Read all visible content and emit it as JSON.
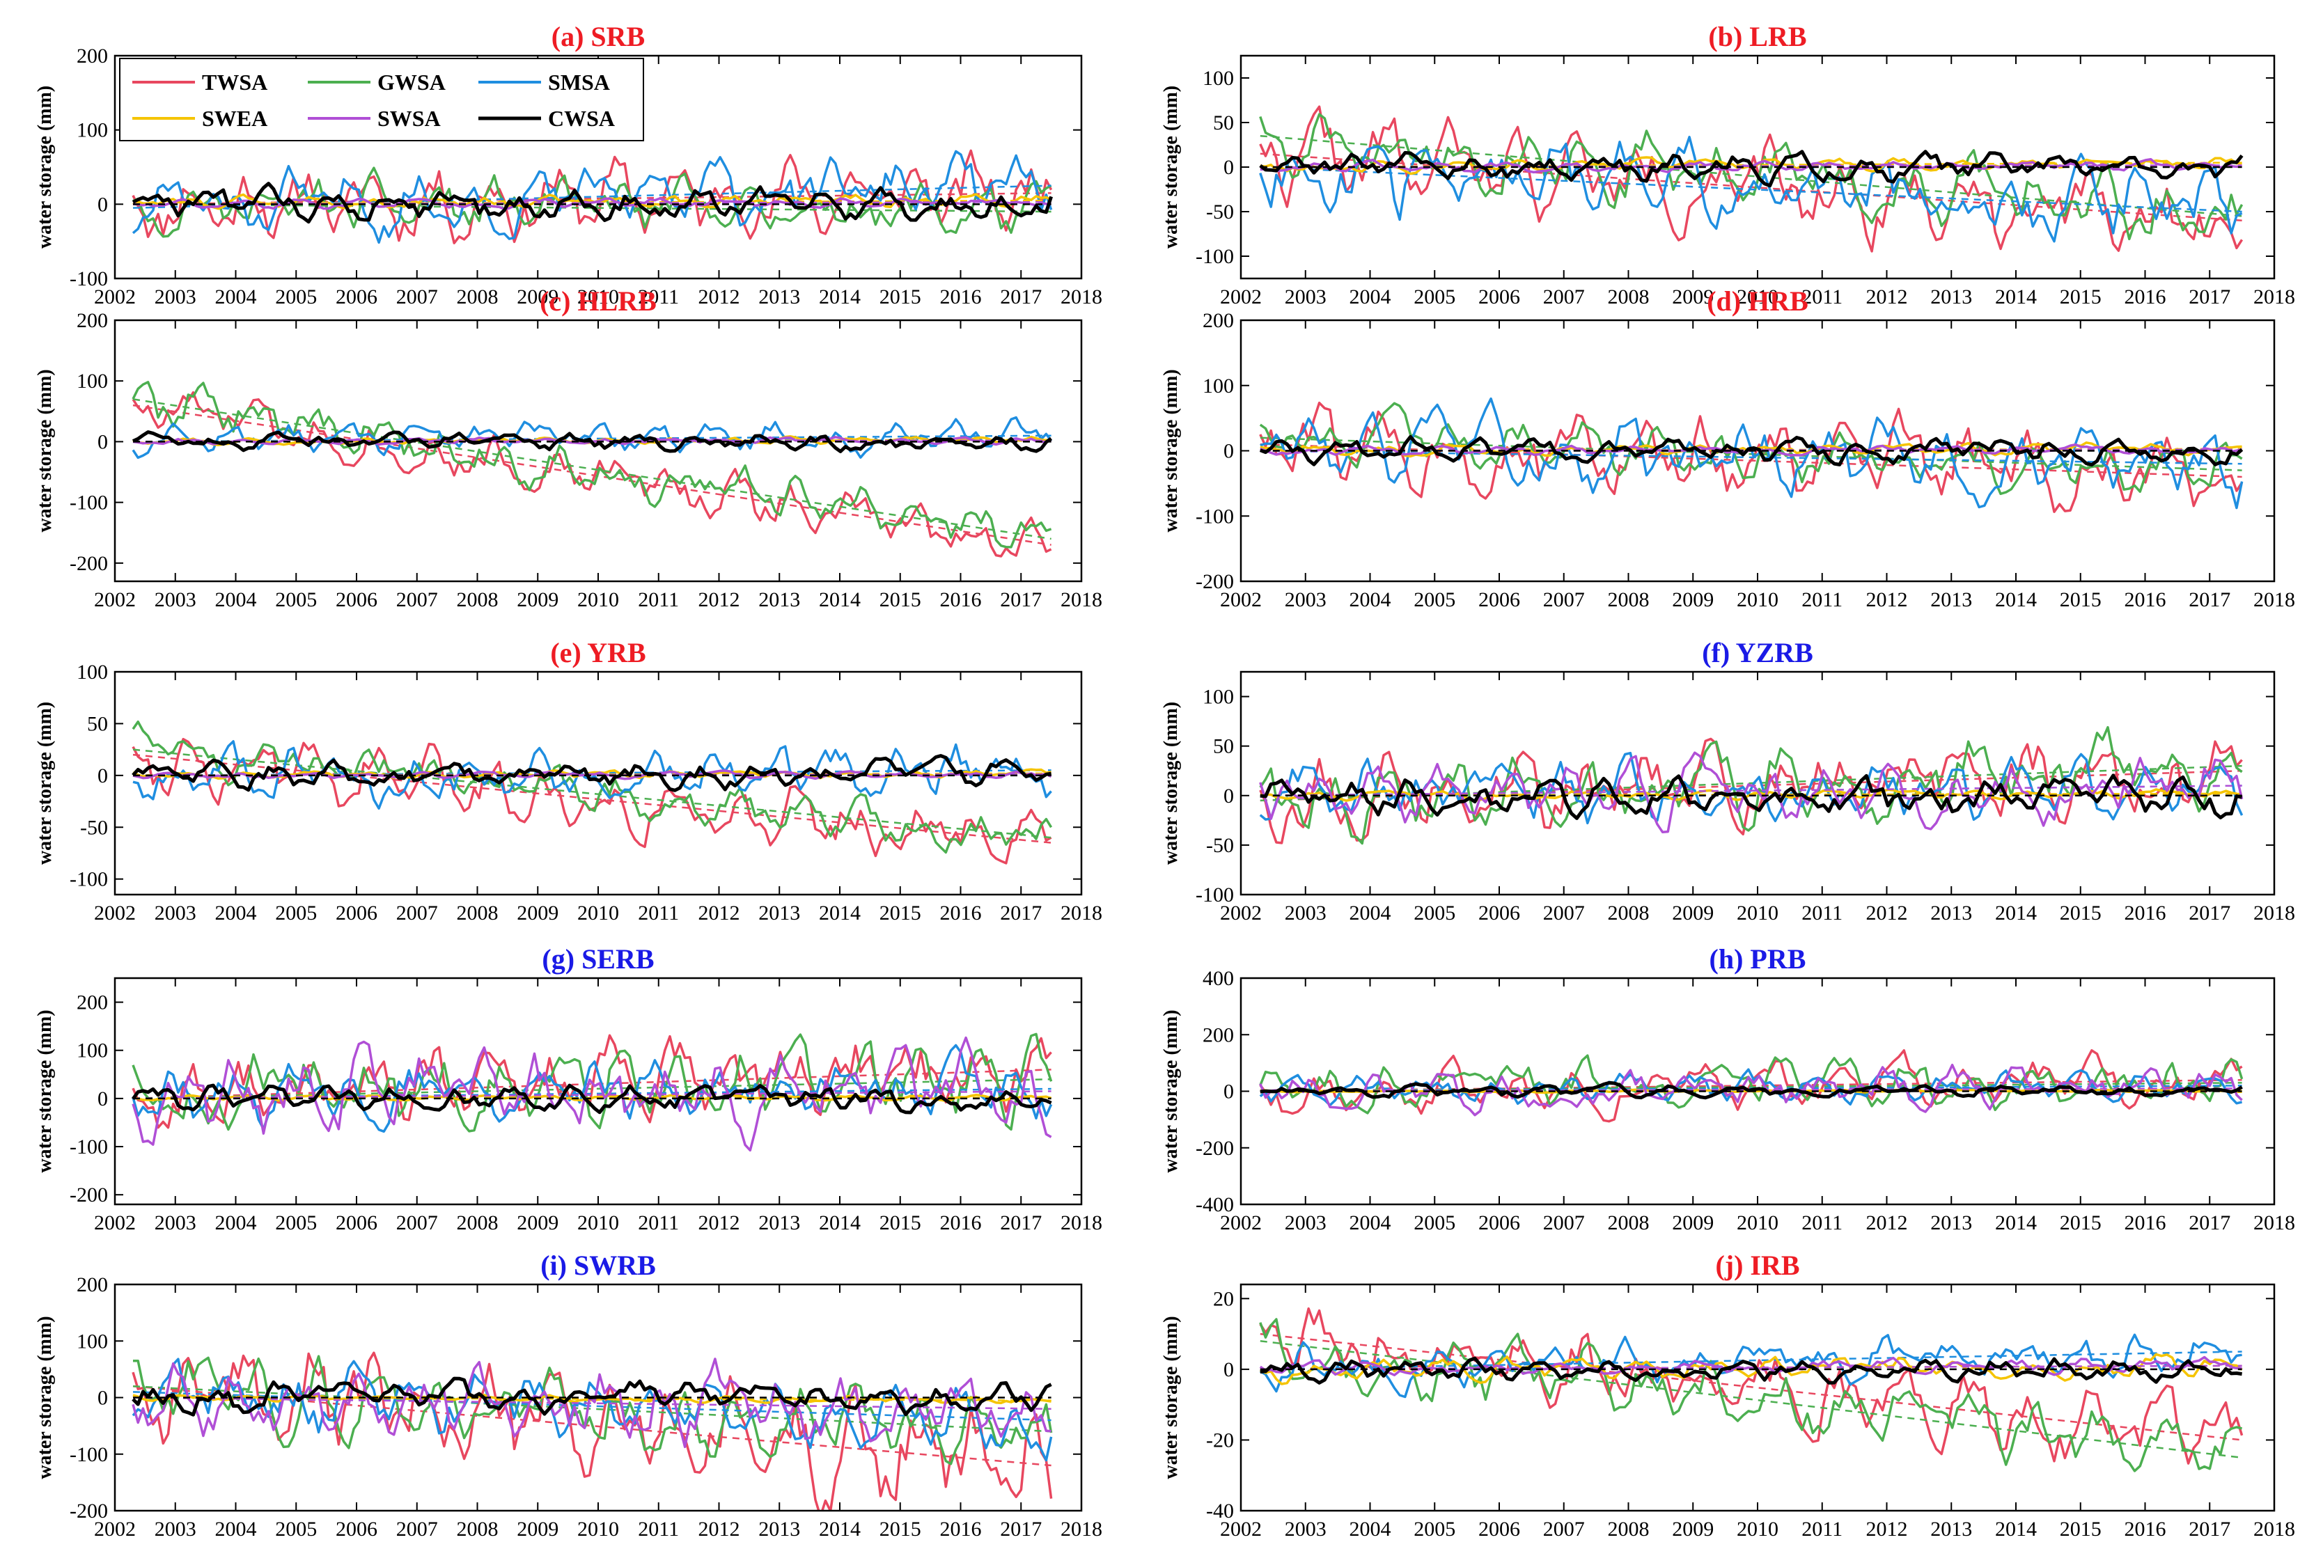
{
  "figure": {
    "background": "#ffffff"
  },
  "legend": {
    "entries": [
      {
        "name": "TWSA",
        "color": "#e8475f"
      },
      {
        "name": "GWSA",
        "color": "#4caf50"
      },
      {
        "name": "SMSA",
        "color": "#1f8ee0"
      },
      {
        "name": "SWEA",
        "color": "#f5c400"
      },
      {
        "name": "SWSA",
        "color": "#b04fd6"
      },
      {
        "name": "CWSA",
        "color": "#000000"
      }
    ]
  },
  "chart_data": [
    {
      "id": "a",
      "type": "line",
      "title": "(a) SRB",
      "title_color": "#ee1c24",
      "ylabel": "water storage (mm)",
      "xlabel": "",
      "xlim": [
        2002,
        2018
      ],
      "ylim": [
        -100,
        200
      ],
      "xticks": [
        2002,
        2003,
        2004,
        2005,
        2006,
        2007,
        2008,
        2009,
        2010,
        2011,
        2012,
        2013,
        2014,
        2015,
        2016,
        2017,
        2018
      ],
      "yticks": [
        -100,
        0,
        100,
        200
      ],
      "amp": [
        50,
        35,
        40,
        8,
        6,
        20
      ],
      "trend": [
        [
          0,
          15
        ],
        [
          0,
          -10
        ],
        [
          -5,
          25
        ],
        [
          0,
          5
        ],
        [
          0,
          3
        ],
        [
          0,
          0
        ]
      ],
      "seed": 11
    },
    {
      "id": "b",
      "type": "line",
      "title": "(b) LRB",
      "title_color": "#ee1c24",
      "ylabel": "water storage (mm)",
      "xlabel": "",
      "xlim": [
        2002,
        2018
      ],
      "ylim": [
        -125,
        125
      ],
      "xticks": [
        2002,
        2003,
        2004,
        2005,
        2006,
        2007,
        2008,
        2009,
        2010,
        2011,
        2012,
        2013,
        2014,
        2015,
        2016,
        2017,
        2018
      ],
      "yticks": [
        -100,
        -50,
        0,
        50,
        100
      ],
      "amp": [
        45,
        35,
        45,
        6,
        5,
        15
      ],
      "trend": [
        [
          15,
          -60
        ],
        [
          35,
          -55
        ],
        [
          0,
          -50
        ],
        [
          0,
          5
        ],
        [
          0,
          2
        ],
        [
          0,
          0
        ]
      ],
      "seed": 22
    },
    {
      "id": "c",
      "type": "line",
      "title": "(c) HLRB",
      "title_color": "#ee1c24",
      "ylabel": "water storage (mm)",
      "xlabel": "",
      "xlim": [
        2002,
        2018
      ],
      "ylim": [
        -230,
        200
      ],
      "xticks": [
        2002,
        2003,
        2004,
        2005,
        2006,
        2007,
        2008,
        2009,
        2010,
        2011,
        2012,
        2013,
        2014,
        2015,
        2016,
        2017,
        2018
      ],
      "yticks": [
        -200,
        -100,
        0,
        100,
        200
      ],
      "amp": [
        40,
        40,
        25,
        5,
        5,
        12
      ],
      "trend": [
        [
          60,
          -170
        ],
        [
          70,
          -160
        ],
        [
          0,
          10
        ],
        [
          0,
          3
        ],
        [
          0,
          2
        ],
        [
          0,
          0
        ]
      ],
      "seed": 33
    },
    {
      "id": "d",
      "type": "line",
      "title": "(d) HRB",
      "title_color": "#ee1c24",
      "ylabel": "water storage (mm)",
      "xlabel": "",
      "xlim": [
        2002,
        2018
      ],
      "ylim": [
        -200,
        200
      ],
      "xticks": [
        2002,
        2003,
        2004,
        2005,
        2006,
        2007,
        2008,
        2009,
        2010,
        2011,
        2012,
        2013,
        2014,
        2015,
        2016,
        2017,
        2018
      ],
      "yticks": [
        -200,
        -100,
        0,
        100,
        200
      ],
      "amp": [
        60,
        40,
        55,
        8,
        6,
        18
      ],
      "trend": [
        [
          10,
          -40
        ],
        [
          20,
          -30
        ],
        [
          0,
          -20
        ],
        [
          0,
          3
        ],
        [
          0,
          2
        ],
        [
          0,
          0
        ]
      ],
      "seed": 44
    },
    {
      "id": "e",
      "type": "line",
      "title": "(e) YRB",
      "title_color": "#ee1c24",
      "ylabel": "water storage (mm)",
      "xlabel": "",
      "xlim": [
        2002,
        2018
      ],
      "ylim": [
        -115,
        100
      ],
      "xticks": [
        2002,
        2003,
        2004,
        2005,
        2006,
        2007,
        2008,
        2009,
        2010,
        2011,
        2012,
        2013,
        2014,
        2015,
        2016,
        2017,
        2018
      ],
      "yticks": [
        -100,
        -50,
        0,
        50,
        100
      ],
      "amp": [
        30,
        20,
        25,
        3,
        3,
        12
      ],
      "trend": [
        [
          20,
          -65
        ],
        [
          25,
          -60
        ],
        [
          0,
          5
        ],
        [
          0,
          2
        ],
        [
          0,
          1
        ],
        [
          0,
          0
        ]
      ],
      "seed": 55
    },
    {
      "id": "f",
      "type": "line",
      "title": "(f) YZRB",
      "title_color": "#1a1ae6",
      "ylabel": "water storage (mm)",
      "xlabel": "",
      "xlim": [
        2002,
        2018
      ],
      "ylim": [
        -100,
        125
      ],
      "xticks": [
        2002,
        2003,
        2004,
        2005,
        2006,
        2007,
        2008,
        2009,
        2010,
        2011,
        2012,
        2013,
        2014,
        2015,
        2016,
        2017,
        2018
      ],
      "yticks": [
        -100,
        -50,
        0,
        50,
        100
      ],
      "amp": [
        40,
        35,
        30,
        4,
        30,
        18
      ],
      "trend": [
        [
          -5,
          25
        ],
        [
          -5,
          30
        ],
        [
          0,
          10
        ],
        [
          0,
          2
        ],
        [
          0,
          10
        ],
        [
          0,
          0
        ]
      ],
      "seed": 66
    },
    {
      "id": "g",
      "type": "line",
      "title": "(g) SERB",
      "title_color": "#1a1ae6",
      "ylabel": "water storage (mm)",
      "xlabel": "",
      "xlim": [
        2002,
        2018
      ],
      "ylim": [
        -220,
        250
      ],
      "xticks": [
        2002,
        2003,
        2004,
        2005,
        2006,
        2007,
        2008,
        2009,
        2010,
        2011,
        2012,
        2013,
        2014,
        2015,
        2016,
        2017,
        2018
      ],
      "yticks": [
        -200,
        -100,
        0,
        100,
        200
      ],
      "amp": [
        80,
        80,
        55,
        5,
        80,
        25
      ],
      "trend": [
        [
          0,
          60
        ],
        [
          0,
          40
        ],
        [
          0,
          20
        ],
        [
          0,
          2
        ],
        [
          0,
          15
        ],
        [
          0,
          0
        ]
      ],
      "seed": 77
    },
    {
      "id": "h",
      "type": "line",
      "title": "(h) PRB",
      "title_color": "#1a1ae6",
      "ylabel": "water storage (mm)",
      "xlabel": "",
      "xlim": [
        2002,
        2018
      ],
      "ylim": [
        -400,
        400
      ],
      "xticks": [
        2002,
        2003,
        2004,
        2005,
        2006,
        2007,
        2008,
        2009,
        2010,
        2011,
        2012,
        2013,
        2014,
        2015,
        2016,
        2017,
        2018
      ],
      "yticks": [
        -400,
        -200,
        0,
        200,
        400
      ],
      "amp": [
        80,
        80,
        50,
        4,
        70,
        20
      ],
      "trend": [
        [
          0,
          40
        ],
        [
          0,
          30
        ],
        [
          0,
          20
        ],
        [
          0,
          2
        ],
        [
          0,
          10
        ],
        [
          0,
          0
        ]
      ],
      "seed": 88
    },
    {
      "id": "i",
      "type": "line",
      "title": "(i) SWRB",
      "title_color": "#1a1ae6",
      "ylabel": "water storage (mm)",
      "xlabel": "",
      "xlim": [
        2002,
        2018
      ],
      "ylim": [
        -200,
        200
      ],
      "xticks": [
        2002,
        2003,
        2004,
        2005,
        2006,
        2007,
        2008,
        2009,
        2010,
        2011,
        2012,
        2013,
        2014,
        2015,
        2016,
        2017,
        2018
      ],
      "yticks": [
        -200,
        -100,
        0,
        100,
        200
      ],
      "amp": [
        90,
        60,
        55,
        5,
        60,
        25
      ],
      "trend": [
        [
          20,
          -120
        ],
        [
          20,
          -60
        ],
        [
          10,
          -40
        ],
        [
          0,
          -5
        ],
        [
          0,
          -20
        ],
        [
          0,
          0
        ]
      ],
      "seed": 99
    },
    {
      "id": "j",
      "type": "line",
      "title": "(j) IRB",
      "title_color": "#ee1c24",
      "ylabel": "water storage (mm)",
      "xlabel": "",
      "xlim": [
        2002,
        2018
      ],
      "ylim": [
        -40,
        24
      ],
      "xticks": [
        2002,
        2003,
        2004,
        2005,
        2006,
        2007,
        2008,
        2009,
        2010,
        2011,
        2012,
        2013,
        2014,
        2015,
        2016,
        2017,
        2018
      ],
      "yticks": [
        -40,
        -20,
        0,
        20
      ],
      "amp": [
        10,
        9,
        6,
        3,
        2,
        3
      ],
      "trend": [
        [
          10,
          -20
        ],
        [
          8,
          -25
        ],
        [
          0,
          5
        ],
        [
          0,
          1
        ],
        [
          0,
          1
        ],
        [
          0,
          0
        ]
      ],
      "seed": 111
    }
  ]
}
